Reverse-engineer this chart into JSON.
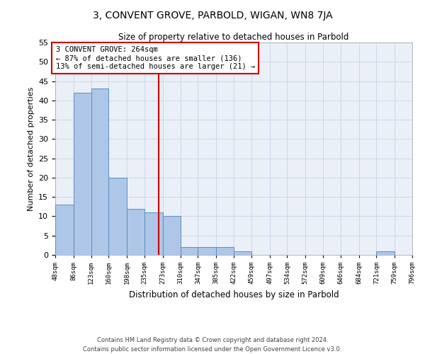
{
  "title1": "3, CONVENT GROVE, PARBOLD, WIGAN, WN8 7JA",
  "title2": "Size of property relative to detached houses in Parbold",
  "xlabel": "Distribution of detached houses by size in Parbold",
  "ylabel": "Number of detached properties",
  "bin_labels": [
    "48sqm",
    "86sqm",
    "123sqm",
    "160sqm",
    "198sqm",
    "235sqm",
    "273sqm",
    "310sqm",
    "347sqm",
    "385sqm",
    "422sqm",
    "459sqm",
    "497sqm",
    "534sqm",
    "572sqm",
    "609sqm",
    "646sqm",
    "684sqm",
    "721sqm",
    "759sqm",
    "796sqm"
  ],
  "bin_edges": [
    48,
    86,
    123,
    160,
    198,
    235,
    273,
    310,
    347,
    385,
    422,
    459,
    497,
    534,
    572,
    609,
    646,
    684,
    721,
    759,
    796
  ],
  "counts": [
    13,
    42,
    43,
    20,
    12,
    11,
    10,
    2,
    2,
    2,
    1,
    0,
    0,
    0,
    0,
    0,
    0,
    0,
    1,
    0,
    0
  ],
  "property_size": 264,
  "annotation_text": "3 CONVENT GROVE: 264sqm\n← 87% of detached houses are smaller (136)\n13% of semi-detached houses are larger (21) →",
  "bar_color": "#aec6e8",
  "bar_edge_color": "#5a8fc0",
  "vline_color": "#cc0000",
  "annotation_box_color": "#cc0000",
  "grid_color": "#c8d4e8",
  "background_color": "#eaeff8",
  "footer1": "Contains HM Land Registry data © Crown copyright and database right 2024.",
  "footer2": "Contains public sector information licensed under the Open Government Licence v3.0.",
  "ylim": [
    0,
    55
  ],
  "yticks": [
    0,
    5,
    10,
    15,
    20,
    25,
    30,
    35,
    40,
    45,
    50,
    55
  ]
}
